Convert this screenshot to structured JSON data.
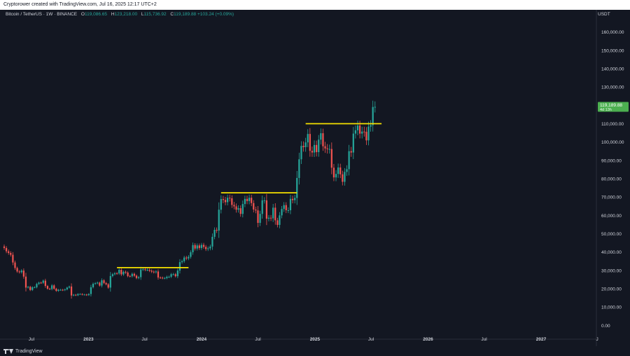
{
  "header": {
    "attribution": "Cryptorower created with TradingView.com, Jul 16, 2025 12:17 UTC+2"
  },
  "legend": {
    "symbol": "Bitcoin / TetherUS · 1W · BINANCE",
    "open_label": "O",
    "open": "119,086.65",
    "high_label": "H",
    "high": "123,218.00",
    "low_label": "L",
    "low": "115,736.92",
    "close_label": "C",
    "close": "119,189.88",
    "change": "+103.24 (+0.09%)"
  },
  "price_axis": {
    "currency": "USDT",
    "last_price": "119,189.88",
    "countdown": "4d 13h"
  },
  "footer": {
    "brand": "TradingView"
  },
  "colors": {
    "background": "#131722",
    "up": "#26a69a",
    "down": "#ef5350",
    "level_line": "#f5e000",
    "last_price_badge": "#4caf50",
    "axis_text": "#d1d4dc"
  },
  "chart_data": {
    "type": "candlestick",
    "symbol": "Bitcoin / TetherUS",
    "interval": "1W",
    "exchange": "BINANCE",
    "y_axis": {
      "ticks": [
        0,
        10000,
        20000,
        30000,
        40000,
        50000,
        60000,
        70000,
        80000,
        90000,
        100000,
        110000,
        120000,
        130000,
        140000,
        150000,
        160000
      ],
      "tick_labels": [
        "0.00",
        "10,000.00",
        "20,000.00",
        "30,000.00",
        "40,000.00",
        "50,000.00",
        "60,000.00",
        "70,000.00",
        "80,000.00",
        "90,000.00",
        "100,000.00",
        "110,000.00",
        "120,000.00",
        "130,000.00",
        "140,000.00",
        "150,000.00",
        "160,000.00"
      ],
      "ylim": [
        -6000,
        166000
      ]
    },
    "x_axis": {
      "ticks": [
        {
          "date": "2022-07-01",
          "label": "Jul"
        },
        {
          "date": "2023-01-01",
          "label": "2023"
        },
        {
          "date": "2023-07-01",
          "label": "Jul"
        },
        {
          "date": "2024-01-01",
          "label": "2024"
        },
        {
          "date": "2024-07-01",
          "label": "Jul"
        },
        {
          "date": "2025-01-01",
          "label": "2025"
        },
        {
          "date": "2025-07-01",
          "label": "Jul"
        },
        {
          "date": "2026-01-01",
          "label": "2026"
        },
        {
          "date": "2026-07-01",
          "label": "Jul"
        },
        {
          "date": "2027-01-01",
          "label": "2027"
        },
        {
          "date": "2027-07-01",
          "label": "J"
        }
      ],
      "xlim": [
        "2022-04-04",
        "2027-07-12"
      ]
    },
    "horizontal_levels": [
      {
        "value": 31500,
        "from": "2023-04-03",
        "to": "2023-11-20"
      },
      {
        "value": 72300,
        "from": "2024-03-04",
        "to": "2024-11-04"
      },
      {
        "value": 110000,
        "from": "2024-12-02",
        "to": "2025-08-04"
      }
    ],
    "weekly_close": [
      [
        2022,
        4,
        4,
        42200
      ],
      [
        2022,
        4,
        11,
        40400
      ],
      [
        2022,
        4,
        18,
        39500
      ],
      [
        2022,
        4,
        25,
        38500
      ],
      [
        2022,
        5,
        2,
        34300
      ],
      [
        2022,
        5,
        9,
        31300
      ],
      [
        2022,
        5,
        16,
        29400
      ],
      [
        2022,
        5,
        23,
        29000
      ],
      [
        2022,
        5,
        30,
        29900
      ],
      [
        2022,
        6,
        6,
        26600
      ],
      [
        2022,
        6,
        13,
        20600
      ],
      [
        2022,
        6,
        20,
        21000
      ],
      [
        2022,
        6,
        27,
        19300
      ],
      [
        2022,
        7,
        4,
        20800
      ],
      [
        2022,
        7,
        11,
        20800
      ],
      [
        2022,
        7,
        18,
        22600
      ],
      [
        2022,
        7,
        25,
        23300
      ],
      [
        2022,
        8,
        1,
        23200
      ],
      [
        2022,
        8,
        8,
        24400
      ],
      [
        2022,
        8,
        15,
        21500
      ],
      [
        2022,
        8,
        22,
        20000
      ],
      [
        2022,
        8,
        29,
        19800
      ],
      [
        2022,
        9,
        5,
        21800
      ],
      [
        2022,
        9,
        12,
        20000
      ],
      [
        2022,
        9,
        19,
        18800
      ],
      [
        2022,
        9,
        26,
        19400
      ],
      [
        2022,
        10,
        3,
        19400
      ],
      [
        2022,
        10,
        10,
        19200
      ],
      [
        2022,
        10,
        17,
        19600
      ],
      [
        2022,
        10,
        24,
        20600
      ],
      [
        2022,
        10,
        31,
        21200
      ],
      [
        2022,
        11,
        7,
        16300
      ],
      [
        2022,
        11,
        14,
        16700
      ],
      [
        2022,
        11,
        21,
        16400
      ],
      [
        2022,
        11,
        28,
        17100
      ],
      [
        2022,
        12,
        5,
        17100
      ],
      [
        2022,
        12,
        12,
        16800
      ],
      [
        2022,
        12,
        19,
        16800
      ],
      [
        2022,
        12,
        26,
        16500
      ],
      [
        2023,
        1,
        2,
        17100
      ],
      [
        2023,
        1,
        9,
        20800
      ],
      [
        2023,
        1,
        16,
        22700
      ],
      [
        2023,
        1,
        23,
        23000
      ],
      [
        2023,
        1,
        30,
        23300
      ],
      [
        2023,
        2,
        6,
        21700
      ],
      [
        2023,
        2,
        13,
        24600
      ],
      [
        2023,
        2,
        20,
        23100
      ],
      [
        2023,
        2,
        27,
        22400
      ],
      [
        2023,
        3,
        6,
        20600
      ],
      [
        2023,
        3,
        13,
        26900
      ],
      [
        2023,
        3,
        20,
        27900
      ],
      [
        2023,
        3,
        27,
        28400
      ],
      [
        2023,
        4,
        3,
        28300
      ],
      [
        2023,
        4,
        10,
        30300
      ],
      [
        2023,
        4,
        17,
        27800
      ],
      [
        2023,
        4,
        24,
        29200
      ],
      [
        2023,
        5,
        1,
        28800
      ],
      [
        2023,
        5,
        8,
        26900
      ],
      [
        2023,
        5,
        15,
        26800
      ],
      [
        2023,
        5,
        22,
        28100
      ],
      [
        2023,
        5,
        29,
        27100
      ],
      [
        2023,
        6,
        5,
        25800
      ],
      [
        2023,
        6,
        12,
        26300
      ],
      [
        2023,
        6,
        19,
        30500
      ],
      [
        2023,
        6,
        26,
        30600
      ],
      [
        2023,
        7,
        3,
        30300
      ],
      [
        2023,
        7,
        10,
        30300
      ],
      [
        2023,
        7,
        17,
        29800
      ],
      [
        2023,
        7,
        24,
        29300
      ],
      [
        2023,
        7,
        31,
        29000
      ],
      [
        2023,
        8,
        7,
        29400
      ],
      [
        2023,
        8,
        14,
        26100
      ],
      [
        2023,
        8,
        21,
        26000
      ],
      [
        2023,
        8,
        28,
        25800
      ],
      [
        2023,
        9,
        4,
        25800
      ],
      [
        2023,
        9,
        11,
        26500
      ],
      [
        2023,
        9,
        18,
        26500
      ],
      [
        2023,
        9,
        25,
        27900
      ],
      [
        2023,
        10,
        2,
        27900
      ],
      [
        2023,
        10,
        9,
        26800
      ],
      [
        2023,
        10,
        16,
        29900
      ],
      [
        2023,
        10,
        23,
        34500
      ],
      [
        2023,
        10,
        30,
        35000
      ],
      [
        2023,
        11,
        6,
        37000
      ],
      [
        2023,
        11,
        13,
        36500
      ],
      [
        2023,
        11,
        20,
        37400
      ],
      [
        2023,
        11,
        27,
        39900
      ],
      [
        2023,
        12,
        4,
        43800
      ],
      [
        2023,
        12,
        11,
        41900
      ],
      [
        2023,
        12,
        18,
        43600
      ],
      [
        2023,
        12,
        25,
        42200
      ],
      [
        2024,
        1,
        1,
        43900
      ],
      [
        2024,
        1,
        8,
        42800
      ],
      [
        2024,
        1,
        15,
        41600
      ],
      [
        2024,
        1,
        22,
        42000
      ],
      [
        2024,
        1,
        29,
        43000
      ],
      [
        2024,
        2,
        5,
        48300
      ],
      [
        2024,
        2,
        12,
        52100
      ],
      [
        2024,
        2,
        19,
        51700
      ],
      [
        2024,
        2,
        26,
        63100
      ],
      [
        2024,
        3,
        4,
        68900
      ],
      [
        2024,
        3,
        11,
        68400
      ],
      [
        2024,
        3,
        18,
        67200
      ],
      [
        2024,
        3,
        25,
        69600
      ],
      [
        2024,
        4,
        1,
        69300
      ],
      [
        2024,
        4,
        8,
        65700
      ],
      [
        2024,
        4,
        15,
        64900
      ],
      [
        2024,
        4,
        22,
        63100
      ],
      [
        2024,
        4,
        29,
        63900
      ],
      [
        2024,
        5,
        6,
        60800
      ],
      [
        2024,
        5,
        13,
        66200
      ],
      [
        2024,
        5,
        20,
        69000
      ],
      [
        2024,
        5,
        27,
        67800
      ],
      [
        2024,
        6,
        3,
        69600
      ],
      [
        2024,
        6,
        10,
        66700
      ],
      [
        2024,
        6,
        17,
        63200
      ],
      [
        2024,
        6,
        24,
        62700
      ],
      [
        2024,
        7,
        1,
        55900
      ],
      [
        2024,
        7,
        8,
        60800
      ],
      [
        2024,
        7,
        15,
        68200
      ],
      [
        2024,
        7,
        22,
        68200
      ],
      [
        2024,
        7,
        29,
        58200
      ],
      [
        2024,
        8,
        5,
        58700
      ],
      [
        2024,
        8,
        12,
        58400
      ],
      [
        2024,
        8,
        19,
        64200
      ],
      [
        2024,
        8,
        26,
        57300
      ],
      [
        2024,
        9,
        2,
        54800
      ],
      [
        2024,
        9,
        9,
        60000
      ],
      [
        2024,
        9,
        16,
        63500
      ],
      [
        2024,
        9,
        23,
        65600
      ],
      [
        2024,
        9,
        30,
        62800
      ],
      [
        2024,
        10,
        7,
        62800
      ],
      [
        2024,
        10,
        14,
        69000
      ],
      [
        2024,
        10,
        21,
        68300
      ],
      [
        2024,
        10,
        28,
        69500
      ],
      [
        2024,
        11,
        4,
        80400
      ],
      [
        2024,
        11,
        11,
        90600
      ],
      [
        2024,
        11,
        18,
        97900
      ],
      [
        2024,
        11,
        25,
        97200
      ],
      [
        2024,
        12,
        2,
        99800
      ],
      [
        2024,
        12,
        9,
        104400
      ],
      [
        2024,
        12,
        16,
        95200
      ],
      [
        2024,
        12,
        23,
        94300
      ],
      [
        2024,
        12,
        30,
        98400
      ],
      [
        2025,
        1,
        6,
        94500
      ],
      [
        2025,
        1,
        13,
        101300
      ],
      [
        2025,
        1,
        20,
        104800
      ],
      [
        2025,
        1,
        27,
        97700
      ],
      [
        2025,
        2,
        3,
        96500
      ],
      [
        2025,
        2,
        10,
        96100
      ],
      [
        2025,
        2,
        17,
        96200
      ],
      [
        2025,
        2,
        24,
        86000
      ],
      [
        2025,
        3,
        3,
        80700
      ],
      [
        2025,
        3,
        10,
        82600
      ],
      [
        2025,
        3,
        17,
        86100
      ],
      [
        2025,
        3,
        24,
        82400
      ],
      [
        2025,
        3,
        31,
        78300
      ],
      [
        2025,
        4,
        7,
        83700
      ],
      [
        2025,
        4,
        14,
        85200
      ],
      [
        2025,
        4,
        21,
        95000
      ],
      [
        2025,
        4,
        28,
        94300
      ],
      [
        2025,
        5,
        5,
        104600
      ],
      [
        2025,
        5,
        12,
        106400
      ],
      [
        2025,
        5,
        19,
        109000
      ],
      [
        2025,
        5,
        26,
        104600
      ],
      [
        2025,
        6,
        2,
        105700
      ],
      [
        2025,
        6,
        9,
        105600
      ],
      [
        2025,
        6,
        16,
        100900
      ],
      [
        2025,
        6,
        23,
        108400
      ],
      [
        2025,
        6,
        30,
        109200
      ],
      [
        2025,
        7,
        7,
        119100
      ],
      [
        2025,
        7,
        14,
        119190
      ]
    ]
  }
}
